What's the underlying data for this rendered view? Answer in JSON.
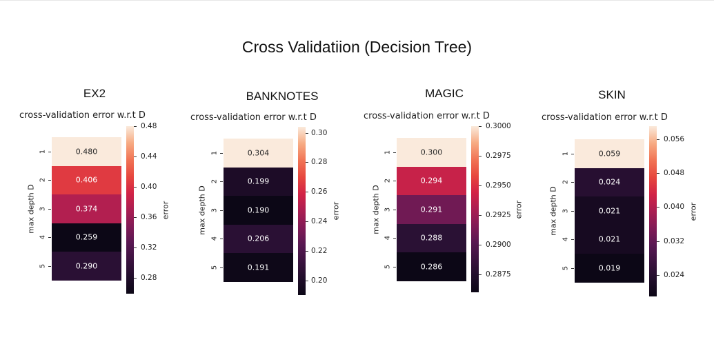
{
  "title": "Cross Validatiion (Decision Tree)",
  "chart_data": [
    {
      "type": "heatmap",
      "dataset": "EX2",
      "title": "cross-validation error w.r.t D",
      "ylabel": "max depth D",
      "colorbar_label": "error",
      "rows": [
        "1",
        "2",
        "3",
        "4",
        "5"
      ],
      "values": [
        0.48,
        0.406,
        0.374,
        0.259,
        0.29
      ],
      "value_labels": [
        "0.480",
        "0.406",
        "0.374",
        "0.259",
        "0.290"
      ],
      "colorbar_range": [
        0.259,
        0.48
      ],
      "colorbar_ticks": [
        "0.48",
        "0.44",
        "0.40",
        "0.36",
        "0.32",
        "0.28"
      ],
      "colorbar_tick_values": [
        0.48,
        0.44,
        0.4,
        0.36,
        0.32,
        0.28
      ]
    },
    {
      "type": "heatmap",
      "dataset": "BANKNOTES",
      "title": "cross-validation error w.r.t D",
      "ylabel": "max depth D",
      "colorbar_label": "error",
      "rows": [
        "1",
        "2",
        "3",
        "4",
        "5"
      ],
      "values": [
        0.304,
        0.199,
        0.19,
        0.206,
        0.191
      ],
      "value_labels": [
        "0.304",
        "0.199",
        "0.190",
        "0.206",
        "0.191"
      ],
      "colorbar_range": [
        0.19,
        0.304
      ],
      "colorbar_ticks": [
        "0.30",
        "0.28",
        "0.26",
        "0.24",
        "0.22",
        "0.20"
      ],
      "colorbar_tick_values": [
        0.3,
        0.28,
        0.26,
        0.24,
        0.22,
        0.2
      ]
    },
    {
      "type": "heatmap",
      "dataset": "MAGIC",
      "title": "cross-validation error w.r.t D",
      "ylabel": "max depth D",
      "colorbar_label": "error",
      "rows": [
        "1",
        "2",
        "3",
        "4",
        "5"
      ],
      "values": [
        0.3,
        0.294,
        0.291,
        0.288,
        0.286
      ],
      "value_labels": [
        "0.300",
        "0.294",
        "0.291",
        "0.288",
        "0.286"
      ],
      "colorbar_range": [
        0.286,
        0.3
      ],
      "colorbar_ticks": [
        "0.3000",
        "0.2975",
        "0.2950",
        "0.2925",
        "0.2900",
        "0.2875"
      ],
      "colorbar_tick_values": [
        0.3,
        0.2975,
        0.295,
        0.2925,
        0.29,
        0.2875
      ]
    },
    {
      "type": "heatmap",
      "dataset": "SKIN",
      "title": "cross-validation error w.r.t D",
      "ylabel": "max depth D",
      "colorbar_label": "error",
      "rows": [
        "1",
        "2",
        "3",
        "4",
        "5"
      ],
      "values": [
        0.059,
        0.024,
        0.021,
        0.021,
        0.019
      ],
      "value_labels": [
        "0.059",
        "0.024",
        "0.021",
        "0.021",
        "0.019"
      ],
      "colorbar_range": [
        0.019,
        0.059
      ],
      "colorbar_ticks": [
        "0.056",
        "0.048",
        "0.040",
        "0.032",
        "0.024"
      ],
      "colorbar_tick_values": [
        0.056,
        0.048,
        0.04,
        0.032,
        0.024
      ]
    }
  ]
}
